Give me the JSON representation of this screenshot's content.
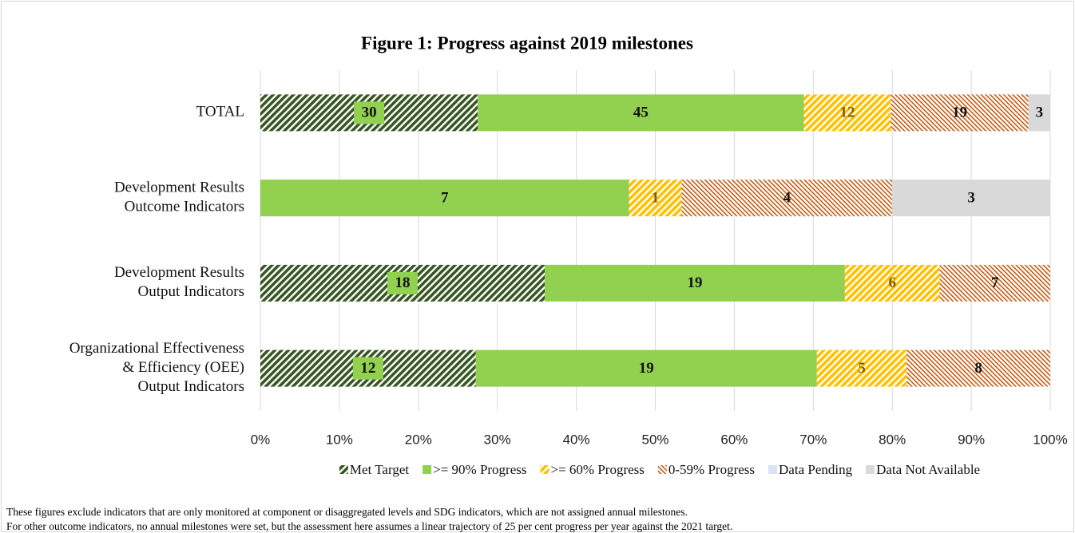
{
  "chart_data": {
    "type": "bar",
    "orientation": "horizontal",
    "stacked": "percent",
    "title": "Figure 1: Progress against 2019 milestones",
    "categories": [
      [
        "TOTAL"
      ],
      [
        "Development Results",
        "Outcome Indicators"
      ],
      [
        "Development Results",
        "Output Indicators"
      ],
      [
        "Organizational Effectiveness",
        "& Efficiency (OEE)",
        "Output Indicators"
      ]
    ],
    "series": [
      {
        "name": "Met Target",
        "color": "#375623",
        "pattern": "hatch",
        "values": [
          30,
          0,
          18,
          12
        ]
      },
      {
        "name": ">= 90% Progress",
        "color": "#92d050",
        "pattern": "solid",
        "values": [
          45,
          7,
          19,
          19
        ]
      },
      {
        "name": ">= 60% Progress",
        "color": "#ffc000",
        "pattern": "hatch",
        "values": [
          12,
          1,
          6,
          5
        ]
      },
      {
        "name": "0-59% Progress",
        "color": "#c55a11",
        "pattern": "fine-hatch",
        "values": [
          19,
          4,
          7,
          8
        ]
      },
      {
        "name": "Data Pending",
        "color": "#dae3f3",
        "pattern": "solid",
        "values": [
          0,
          0,
          0,
          0
        ]
      },
      {
        "name": "Data Not Available",
        "color": "#d9d9d9",
        "pattern": "solid",
        "values": [
          3,
          3,
          0,
          0
        ]
      }
    ],
    "xlim": [
      0,
      100
    ],
    "xticks": [
      {
        "value": 0,
        "label": "0%"
      },
      {
        "value": 10,
        "label": "10%"
      },
      {
        "value": 20,
        "label": "20%"
      },
      {
        "value": 30,
        "label": "30%"
      },
      {
        "value": 40,
        "label": "40%"
      },
      {
        "value": 50,
        "label": "50%"
      },
      {
        "value": 60,
        "label": "60%"
      },
      {
        "value": 70,
        "label": "70%"
      },
      {
        "value": 80,
        "label": "80%"
      },
      {
        "value": 90,
        "label": "90%"
      },
      {
        "value": 100,
        "label": "100%"
      }
    ],
    "grid": true,
    "legend": "bottom",
    "notes": [
      "These figures exclude indicators that are only monitored at component or disaggregated levels and SDG indicators, which are not assigned annual milestones.",
      "For other outcome indicators, no annual milestones were set, but the assessment here assumes a linear trajectory of 25 per cent progress per year against the 2021 target."
    ]
  }
}
